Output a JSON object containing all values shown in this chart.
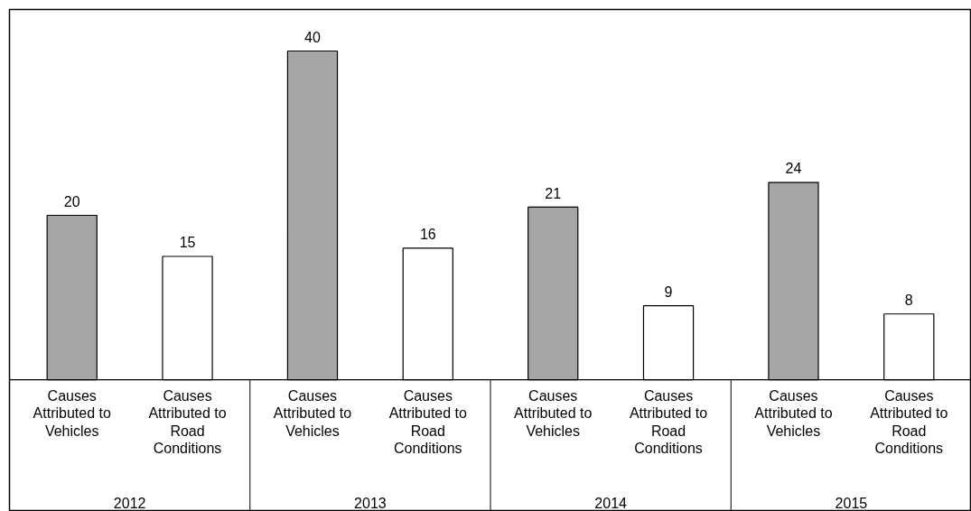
{
  "chart_data": {
    "type": "bar",
    "categories": [
      "Causes Attributed to Vehicles",
      "Causes Attributed to Road Conditions",
      "Causes Attributed to Vehicles",
      "Causes Attributed to Road Conditions",
      "Causes Attributed to Vehicles",
      "Causes Attributed to Road Conditions",
      "Causes Attributed to Vehicles",
      "Causes Attributed to Road Conditions"
    ],
    "values": [
      20,
      15,
      40,
      16,
      21,
      9,
      24,
      8
    ],
    "colors": [
      "#a6a6a6",
      "#ffffff",
      "#a6a6a6",
      "#ffffff",
      "#a6a6a6",
      "#ffffff",
      "#a6a6a6",
      "#ffffff"
    ],
    "annotations": [
      "2012",
      "2013",
      "2014",
      "2015"
    ],
    "data_labels": true
  }
}
